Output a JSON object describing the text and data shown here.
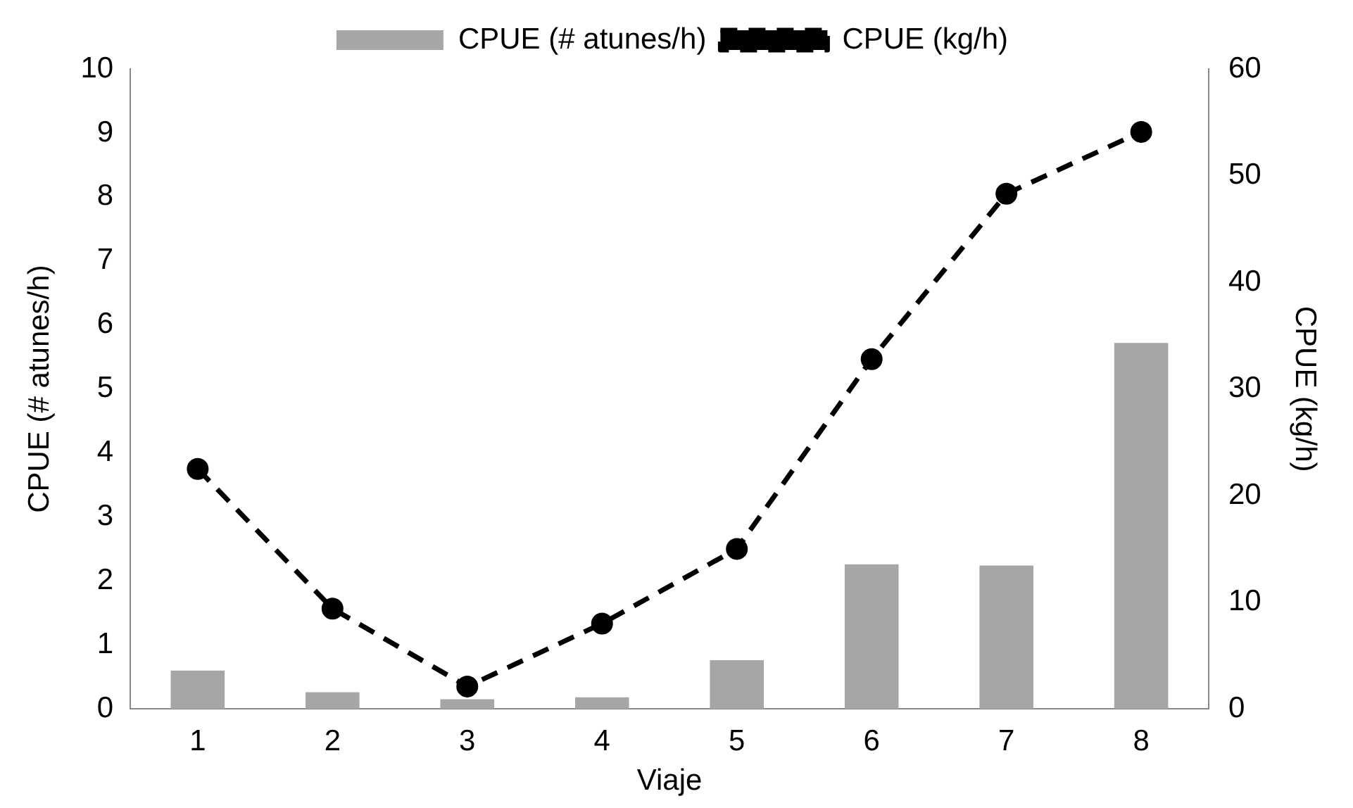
{
  "chart_data": {
    "type": "bar",
    "xlabel": "Viaje",
    "ylabel": "CPUE (# atunes/h)",
    "y2label": "CPUE (kg/h)",
    "categories": [
      "1",
      "2",
      "3",
      "4",
      "5",
      "6",
      "7",
      "8"
    ],
    "series": [
      {
        "name": "CPUE (# atunes/h)",
        "color": "#a6a6a6",
        "values": [
          0.6,
          0.26,
          0.15,
          0.18,
          0.76,
          2.26,
          2.24,
          5.72
        ]
      },
      {
        "name": "CPUE (kg/h)",
        "type": "line",
        "axis": "y2",
        "color": "#000000",
        "marker": "circle",
        "line_style": "dashed",
        "values": [
          22.5,
          9.4,
          2.1,
          8.0,
          15.0,
          32.8,
          48.3,
          54.1
        ]
      }
    ],
    "ylim": [
      0,
      10
    ],
    "yticks": [
      0,
      1,
      2,
      3,
      4,
      5,
      6,
      7,
      8,
      9,
      10
    ],
    "y2lim": [
      0,
      60
    ],
    "y2ticks": [
      0,
      10,
      20,
      30,
      40,
      50,
      60
    ],
    "grid": false,
    "legend": "top"
  }
}
